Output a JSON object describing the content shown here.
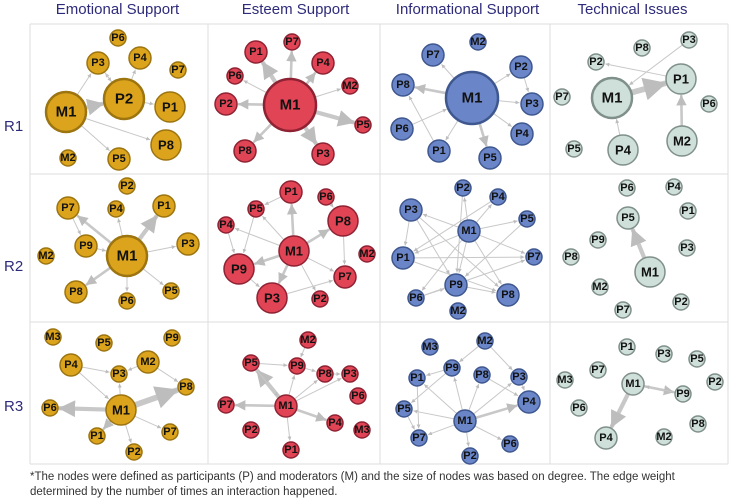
{
  "columns": [
    "Emotional Support",
    "Esteem Support",
    "Informational Support",
    "Technical Issues"
  ],
  "rows": [
    "R1",
    "R2",
    "R3"
  ],
  "colors": {
    "emotional": {
      "fill": "#dca41c",
      "stroke": "#9c7410"
    },
    "esteem": {
      "fill": "#e04455",
      "stroke": "#8e2233"
    },
    "informational": {
      "fill": "#6a86c8",
      "stroke": "#3f578f"
    },
    "technical": {
      "fill": "#cfe0da",
      "stroke": "#7f8f89"
    },
    "edge": "#c8c8c8",
    "heading": "#2e2b7a",
    "grid": "#dddddd"
  },
  "panels": [
    {
      "id": "emotional-r1",
      "nodes": [
        {
          "label": "P6",
          "size": 0
        },
        {
          "label": "P3",
          "size": 1
        },
        {
          "label": "P4",
          "size": 1
        },
        {
          "label": "P7",
          "size": 0
        },
        {
          "label": "M1",
          "size": 3
        },
        {
          "label": "P2",
          "size": 3
        },
        {
          "label": "P1",
          "size": 2
        },
        {
          "label": "P8",
          "size": 2
        },
        {
          "label": "M2",
          "size": 0
        },
        {
          "label": "P5",
          "size": 1
        }
      ],
      "edges": [
        [
          "M1",
          "P2",
          3
        ],
        [
          "M1",
          "P3",
          1
        ],
        [
          "M1",
          "P5",
          1
        ],
        [
          "M1",
          "P8",
          1
        ],
        [
          "P2",
          "P1",
          1
        ],
        [
          "P2",
          "P4",
          1
        ],
        [
          "P2",
          "P3",
          1
        ],
        [
          "P3",
          "P2",
          1
        ]
      ]
    },
    {
      "id": "esteem-r1",
      "nodes": [
        {
          "label": "P1",
          "size": 1
        },
        {
          "label": "P7",
          "size": 0
        },
        {
          "label": "P4",
          "size": 1
        },
        {
          "label": "P6",
          "size": 0
        },
        {
          "label": "M2",
          "size": 0
        },
        {
          "label": "P2",
          "size": 1
        },
        {
          "label": "M1",
          "size": 4
        },
        {
          "label": "P5",
          "size": 0
        },
        {
          "label": "P8",
          "size": 1
        },
        {
          "label": "P3",
          "size": 1
        }
      ],
      "edges": [
        [
          "M1",
          "P1",
          3
        ],
        [
          "M1",
          "P7",
          2
        ],
        [
          "M1",
          "P4",
          2
        ],
        [
          "M1",
          "P6",
          1
        ],
        [
          "M1",
          "M2",
          1
        ],
        [
          "M1",
          "P2",
          2
        ],
        [
          "M1",
          "P5",
          3
        ],
        [
          "M1",
          "P8",
          2
        ],
        [
          "M1",
          "P3",
          3
        ]
      ]
    },
    {
      "id": "informational-r1",
      "nodes": [
        {
          "label": "P7",
          "size": 1
        },
        {
          "label": "M2",
          "size": 0
        },
        {
          "label": "P2",
          "size": 1
        },
        {
          "label": "P8",
          "size": 1
        },
        {
          "label": "M1",
          "size": 4
        },
        {
          "label": "P3",
          "size": 1
        },
        {
          "label": "P6",
          "size": 1
        },
        {
          "label": "P4",
          "size": 1
        },
        {
          "label": "P1",
          "size": 1
        },
        {
          "label": "P5",
          "size": 1
        }
      ],
      "edges": [
        [
          "M1",
          "P2",
          1
        ],
        [
          "M1",
          "P3",
          1
        ],
        [
          "M1",
          "P4",
          1
        ],
        [
          "M1",
          "P5",
          2
        ],
        [
          "M1",
          "P1",
          1
        ],
        [
          "M1",
          "P8",
          2
        ],
        [
          "M1",
          "P7",
          1
        ],
        [
          "P1",
          "P8",
          1
        ],
        [
          "P6",
          "M1",
          1
        ],
        [
          "P2",
          "P3",
          1
        ]
      ]
    },
    {
      "id": "technical-r1",
      "nodes": [
        {
          "label": "P2",
          "size": 0
        },
        {
          "label": "P3",
          "size": 0
        },
        {
          "label": "P8",
          "size": 0
        },
        {
          "label": "P1",
          "size": 2
        },
        {
          "label": "P7",
          "size": 0
        },
        {
          "label": "M1",
          "size": 3
        },
        {
          "label": "P6",
          "size": 0
        },
        {
          "label": "M2",
          "size": 2
        },
        {
          "label": "P5",
          "size": 0
        },
        {
          "label": "P4",
          "size": 2
        }
      ],
      "edges": [
        [
          "M1",
          "P1",
          4
        ],
        [
          "M2",
          "P1",
          2
        ],
        [
          "P4",
          "M1",
          1
        ],
        [
          "P3",
          "M1",
          1
        ],
        [
          "P1",
          "P2",
          1
        ]
      ]
    },
    {
      "id": "emotional-r2",
      "nodes": [
        {
          "label": "P2",
          "size": 0
        },
        {
          "label": "P7",
          "size": 1
        },
        {
          "label": "P4",
          "size": 0
        },
        {
          "label": "P1",
          "size": 1
        },
        {
          "label": "P9",
          "size": 1
        },
        {
          "label": "M1",
          "size": 3
        },
        {
          "label": "P3",
          "size": 1
        },
        {
          "label": "M2",
          "size": 0
        },
        {
          "label": "P8",
          "size": 1
        },
        {
          "label": "P6",
          "size": 0
        },
        {
          "label": "P5",
          "size": 0
        }
      ],
      "edges": [
        [
          "M1",
          "P1",
          3
        ],
        [
          "M1",
          "P7",
          2
        ],
        [
          "M1",
          "P8",
          2
        ],
        [
          "M1",
          "P6",
          1
        ],
        [
          "M1",
          "P5",
          1
        ],
        [
          "M1",
          "P3",
          1
        ],
        [
          "P9",
          "M1",
          1
        ],
        [
          "M1",
          "P4",
          1
        ],
        [
          "P7",
          "P9",
          1
        ]
      ]
    },
    {
      "id": "esteem-r2",
      "nodes": [
        {
          "label": "P1",
          "size": 1
        },
        {
          "label": "P5",
          "size": 0
        },
        {
          "label": "P6",
          "size": 0
        },
        {
          "label": "P8",
          "size": 2
        },
        {
          "label": "P4",
          "size": 0
        },
        {
          "label": "M1",
          "size": 2
        },
        {
          "label": "M2",
          "size": 0
        },
        {
          "label": "P9",
          "size": 2
        },
        {
          "label": "P7",
          "size": 1
        },
        {
          "label": "P3",
          "size": 2
        },
        {
          "label": "P2",
          "size": 0
        }
      ],
      "edges": [
        [
          "M1",
          "P1",
          2
        ],
        [
          "M1",
          "P8",
          2
        ],
        [
          "M1",
          "P7",
          1
        ],
        [
          "M1",
          "P2",
          1
        ],
        [
          "M1",
          "P3",
          2
        ],
        [
          "M1",
          "P9",
          2
        ],
        [
          "M1",
          "P4",
          1
        ],
        [
          "M1",
          "P5",
          1
        ],
        [
          "P5",
          "P9",
          1
        ],
        [
          "P4",
          "P9",
          1
        ],
        [
          "P6",
          "P8",
          1
        ],
        [
          "P1",
          "P5",
          1
        ],
        [
          "P9",
          "P3",
          1
        ],
        [
          "P3",
          "P7",
          1
        ],
        [
          "P8",
          "P7",
          1
        ]
      ]
    },
    {
      "id": "informational-r2",
      "nodes": [
        {
          "label": "P2",
          "size": 0
        },
        {
          "label": "P4",
          "size": 0
        },
        {
          "label": "P3",
          "size": 1
        },
        {
          "label": "P5",
          "size": 0
        },
        {
          "label": "M1",
          "size": 1
        },
        {
          "label": "P1",
          "size": 1
        },
        {
          "label": "P7",
          "size": 0
        },
        {
          "label": "P9",
          "size": 1
        },
        {
          "label": "P6",
          "size": 0
        },
        {
          "label": "P8",
          "size": 1
        },
        {
          "label": "M2",
          "size": 0
        }
      ],
      "edges": [
        [
          "M1",
          "P3",
          1
        ],
        [
          "M1",
          "P2",
          1
        ],
        [
          "M1",
          "P4",
          1
        ],
        [
          "M1",
          "P5",
          1
        ],
        [
          "M1",
          "P1",
          1
        ],
        [
          "M1",
          "P7",
          1
        ],
        [
          "M1",
          "P9",
          1
        ],
        [
          "M1",
          "P8",
          1
        ],
        [
          "M1",
          "P6",
          1
        ],
        [
          "P3",
          "P1",
          1
        ],
        [
          "P3",
          "P9",
          1
        ],
        [
          "P1",
          "P8",
          1
        ],
        [
          "P9",
          "P8",
          1
        ],
        [
          "P6",
          "P9",
          1
        ],
        [
          "P3",
          "P8",
          1
        ],
        [
          "P5",
          "P9",
          1
        ],
        [
          "P1",
          "P7",
          1
        ],
        [
          "P2",
          "P9",
          1
        ],
        [
          "P4",
          "P1",
          1
        ],
        [
          "P6",
          "P7",
          1
        ]
      ]
    },
    {
      "id": "technical-r2",
      "nodes": [
        {
          "label": "P6",
          "size": 0
        },
        {
          "label": "P4",
          "size": 0
        },
        {
          "label": "P5",
          "size": 1
        },
        {
          "label": "P1",
          "size": 0
        },
        {
          "label": "P9",
          "size": 0
        },
        {
          "label": "P3",
          "size": 0
        },
        {
          "label": "P8",
          "size": 0
        },
        {
          "label": "M1",
          "size": 2
        },
        {
          "label": "M2",
          "size": 0
        },
        {
          "label": "P7",
          "size": 0
        },
        {
          "label": "P2",
          "size": 0
        }
      ],
      "edges": [
        [
          "M1",
          "P5",
          3
        ]
      ]
    },
    {
      "id": "emotional-r3",
      "nodes": [
        {
          "label": "M3",
          "size": 0
        },
        {
          "label": "P5",
          "size": 0
        },
        {
          "label": "P9",
          "size": 0
        },
        {
          "label": "P4",
          "size": 1
        },
        {
          "label": "M2",
          "size": 1
        },
        {
          "label": "P3",
          "size": 0
        },
        {
          "label": "P8",
          "size": 0
        },
        {
          "label": "P6",
          "size": 0
        },
        {
          "label": "M1",
          "size": 2
        },
        {
          "label": "P7",
          "size": 0
        },
        {
          "label": "P1",
          "size": 0
        },
        {
          "label": "P2",
          "size": 0
        }
      ],
      "edges": [
        [
          "M1",
          "P8",
          4
        ],
        [
          "M1",
          "P6",
          3
        ],
        [
          "M1",
          "P1",
          2
        ],
        [
          "M1",
          "P7",
          1
        ],
        [
          "M1",
          "P3",
          1
        ],
        [
          "P4",
          "P3",
          1
        ],
        [
          "P4",
          "M1",
          1
        ],
        [
          "M2",
          "P3",
          1
        ],
        [
          "M2",
          "P8",
          1
        ],
        [
          "M1",
          "P2",
          1
        ]
      ]
    },
    {
      "id": "esteem-r3",
      "nodes": [
        {
          "label": "M2",
          "size": 0
        },
        {
          "label": "P5",
          "size": 0
        },
        {
          "label": "P9",
          "size": 0
        },
        {
          "label": "P8",
          "size": 0
        },
        {
          "label": "P3",
          "size": 0
        },
        {
          "label": "P6",
          "size": 0
        },
        {
          "label": "P7",
          "size": 0
        },
        {
          "label": "M1",
          "size": 1
        },
        {
          "label": "P4",
          "size": 0
        },
        {
          "label": "M3",
          "size": 0
        },
        {
          "label": "P2",
          "size": 0
        },
        {
          "label": "P1",
          "size": 0
        }
      ],
      "edges": [
        [
          "M1",
          "P5",
          3
        ],
        [
          "M1",
          "P7",
          2
        ],
        [
          "M1",
          "P4",
          2
        ],
        [
          "M1",
          "P9",
          1
        ],
        [
          "M1",
          "P8",
          1
        ],
        [
          "M1",
          "P1",
          1
        ],
        [
          "M1",
          "P3",
          1
        ],
        [
          "M2",
          "P9",
          1
        ],
        [
          "P5",
          "P9",
          1
        ],
        [
          "P9",
          "P8",
          1
        ],
        [
          "P8",
          "P3",
          1
        ],
        [
          "P5",
          "M1",
          1
        ]
      ]
    },
    {
      "id": "informational-r3",
      "nodes": [
        {
          "label": "M3",
          "size": 0
        },
        {
          "label": "M2",
          "size": 0
        },
        {
          "label": "P9",
          "size": 0
        },
        {
          "label": "P8",
          "size": 0
        },
        {
          "label": "P1",
          "size": 0
        },
        {
          "label": "P3",
          "size": 0
        },
        {
          "label": "P4",
          "size": 1
        },
        {
          "label": "P5",
          "size": 0
        },
        {
          "label": "M1",
          "size": 1
        },
        {
          "label": "P7",
          "size": 0
        },
        {
          "label": "P2",
          "size": 0
        },
        {
          "label": "P6",
          "size": 0
        }
      ],
      "edges": [
        [
          "M1",
          "P4",
          2
        ],
        [
          "M1",
          "P9",
          1
        ],
        [
          "M1",
          "P8",
          1
        ],
        [
          "M1",
          "P1",
          1
        ],
        [
          "M1",
          "P3",
          1
        ],
        [
          "M1",
          "P5",
          1
        ],
        [
          "M1",
          "P7",
          1
        ],
        [
          "M1",
          "P2",
          1
        ],
        [
          "M1",
          "P6",
          1
        ],
        [
          "M2",
          "P9",
          1
        ],
        [
          "P9",
          "P1",
          1
        ],
        [
          "P9",
          "P5",
          1
        ],
        [
          "P1",
          "P7",
          1
        ],
        [
          "P8",
          "P4",
          1
        ],
        [
          "P3",
          "P4",
          1
        ],
        [
          "M2",
          "P3",
          1
        ],
        [
          "P5",
          "P7",
          1
        ]
      ]
    },
    {
      "id": "technical-r3",
      "nodes": [
        {
          "label": "P1",
          "size": 0
        },
        {
          "label": "P3",
          "size": 0
        },
        {
          "label": "P5",
          "size": 0
        },
        {
          "label": "M3",
          "size": 0
        },
        {
          "label": "P7",
          "size": 0
        },
        {
          "label": "M1",
          "size": 1
        },
        {
          "label": "P2",
          "size": 0
        },
        {
          "label": "P6",
          "size": 0
        },
        {
          "label": "P9",
          "size": 0
        },
        {
          "label": "P8",
          "size": 0
        },
        {
          "label": "P4",
          "size": 1
        },
        {
          "label": "M2",
          "size": 0
        }
      ],
      "edges": [
        [
          "M1",
          "P4",
          3
        ],
        [
          "M1",
          "P9",
          2
        ],
        [
          "P9",
          "M1",
          1
        ]
      ]
    }
  ],
  "footnote": "*The nodes were defined as participants (P) and  moderators (M) and the size of nodes was based on degree. The edge weight determined by the number of times an interaction happened."
}
